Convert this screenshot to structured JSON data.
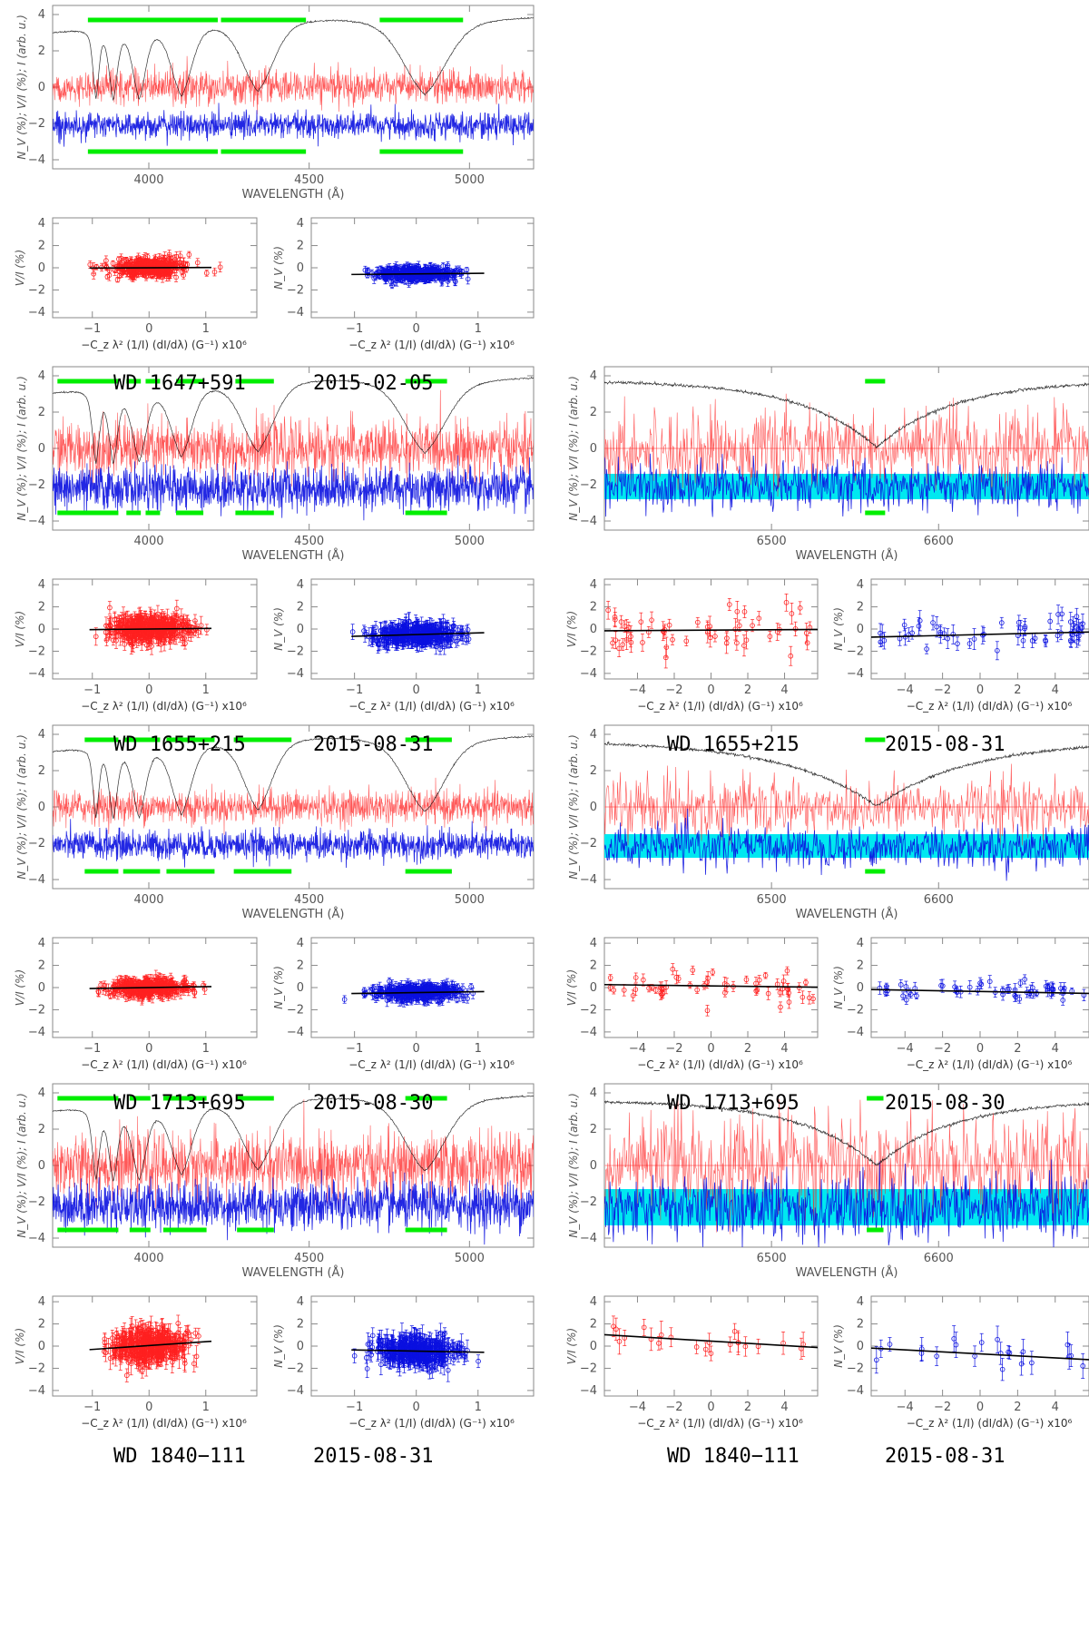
{
  "texts": {
    "spec_ylabel": "N_V (%); V/I (%); I (arb. u.)",
    "spec_xlabel": "WAVELENGTH (Å)",
    "corr_xlabel": "−C_z λ² (1/I) (dI/dλ) (G⁻¹) x10⁶",
    "corr_ylabel_v": "V/I (%)",
    "corr_ylabel_n": "N_V (%)"
  },
  "colors": {
    "stokes_v": "#ff2020",
    "null": "#0a10e0",
    "null_band": "#00e8f0",
    "intensity": "#000000",
    "mask": "#00ee00",
    "frame": "#8a8a8a",
    "fit": "#000000"
  },
  "blocks": [
    {
      "star": "WD 1647+591",
      "date": "2015-02-05",
      "blue_plot": {
        "xlim": [
          3700,
          5200
        ],
        "ylim": [
          -4.5,
          4.5
        ],
        "xticks": [
          4000,
          4500,
          5000
        ],
        "yticks": [
          -4,
          -2,
          0,
          2,
          4
        ],
        "intensity_continuum": 3.9,
        "balmer_lines": [
          {
            "center": 3835,
            "depth": 3.7,
            "width": 10
          },
          {
            "center": 3889,
            "depth": 3.8,
            "width": 14
          },
          {
            "center": 3970,
            "depth": 3.9,
            "width": 22
          },
          {
            "center": 4102,
            "depth": 4.0,
            "width": 35
          },
          {
            "center": 4340,
            "depth": 4.1,
            "width": 55
          },
          {
            "center": 4861,
            "depth": 4.3,
            "width": 75
          }
        ],
        "stokes_v_offset": 0.0,
        "stokes_v_noise": 0.45,
        "null_offset": -2.1,
        "null_noise": 0.35,
        "mask_intervals": [
          [
            3810,
            4215
          ],
          [
            4225,
            4490
          ],
          [
            4720,
            4980
          ]
        ],
        "has_band": false
      },
      "blue_corr": {
        "v_xlim": [
          -1.7,
          1.9
        ],
        "n_xlim": [
          -1.7,
          1.9
        ],
        "ylim": [
          -4.5,
          4.5
        ],
        "xticks": [
          -1,
          0,
          1
        ],
        "yticks": [
          -4,
          -2,
          0,
          2,
          4
        ],
        "v_fit": [
          0.0,
          0.02
        ],
        "n_fit": [
          -0.55,
          0.05
        ],
        "v_spread": 0.4,
        "n_spread": 0.3,
        "n_points": 350,
        "err": 0.35
      }
    },
    {
      "star": "WD 1655+215",
      "date": "2015-08-31",
      "blue_plot": {
        "xlim": [
          3700,
          5200
        ],
        "ylim": [
          -4.5,
          4.5
        ],
        "xticks": [
          4000,
          4500,
          5000
        ],
        "yticks": [
          -4,
          -2,
          0,
          2,
          4
        ],
        "intensity_continuum": 3.95,
        "balmer_lines": [
          {
            "center": 3835,
            "depth": 3.9,
            "width": 12
          },
          {
            "center": 3889,
            "depth": 3.9,
            "width": 15
          },
          {
            "center": 3970,
            "depth": 4.0,
            "width": 24
          },
          {
            "center": 4102,
            "depth": 4.0,
            "width": 36
          },
          {
            "center": 4340,
            "depth": 4.1,
            "width": 55
          },
          {
            "center": 4861,
            "depth": 4.2,
            "width": 72
          }
        ],
        "stokes_v_offset": 0.0,
        "stokes_v_noise": 0.75,
        "null_offset": -2.2,
        "null_noise": 0.6,
        "mask_intervals": [
          [
            3715,
            3905
          ],
          [
            3930,
            3975
          ],
          [
            3990,
            4035
          ],
          [
            4085,
            4170
          ],
          [
            4270,
            4390
          ],
          [
            4800,
            4930
          ]
        ],
        "has_band": false
      },
      "blue_corr": {
        "v_xlim": [
          -1.7,
          1.9
        ],
        "n_xlim": [
          -1.7,
          1.9
        ],
        "ylim": [
          -4.5,
          4.5
        ],
        "xticks": [
          -1,
          0,
          1
        ],
        "yticks": [
          -4,
          -2,
          0,
          2,
          4
        ],
        "v_fit": [
          0.0,
          0.05
        ],
        "n_fit": [
          -0.5,
          0.15
        ],
        "v_spread": 0.55,
        "n_spread": 0.45,
        "n_points": 380,
        "err": 0.6
      },
      "red_plot": {
        "xlim": [
          6400,
          6690
        ],
        "ylim": [
          -4.5,
          4.5
        ],
        "xticks": [
          6500,
          6600
        ],
        "yticks": [
          -4,
          -2,
          0,
          2,
          4
        ],
        "intensity_continuum": 3.75,
        "halpha": {
          "center": 6563,
          "depth": 3.7,
          "width": 45
        },
        "stokes_v_offset": 0.0,
        "stokes_v_noise": 1.0,
        "null_offset": -2.1,
        "null_noise": 0.65,
        "band": [
          -2.8,
          -1.4
        ],
        "mask_intervals": [
          [
            6556,
            6568
          ]
        ],
        "has_band": true
      },
      "red_corr": {
        "v_xlim": [
          -5.8,
          5.8
        ],
        "n_xlim": [
          -5.8,
          5.8
        ],
        "ylim": [
          -4.5,
          4.5
        ],
        "xticks": [
          -4,
          -2,
          0,
          2,
          4
        ],
        "yticks": [
          -4,
          -2,
          0,
          2,
          4
        ],
        "v_fit": [
          -0.1,
          0.01
        ],
        "n_fit": [
          -0.5,
          0.04
        ],
        "v_spread": 1.2,
        "n_spread": 0.8,
        "n_points": 55,
        "err": 0.7
      }
    },
    {
      "star": "WD 1713+695",
      "date": "2015-08-30",
      "blue_plot": {
        "xlim": [
          3700,
          5200
        ],
        "ylim": [
          -4.5,
          4.5
        ],
        "xticks": [
          4000,
          4500,
          5000
        ],
        "yticks": [
          -4,
          -2,
          0,
          2,
          4
        ],
        "intensity_continuum": 3.95,
        "balmer_lines": [
          {
            "center": 3835,
            "depth": 3.7,
            "width": 10
          },
          {
            "center": 3889,
            "depth": 3.8,
            "width": 14
          },
          {
            "center": 3970,
            "depth": 3.9,
            "width": 22
          },
          {
            "center": 4102,
            "depth": 4.0,
            "width": 34
          },
          {
            "center": 4340,
            "depth": 4.1,
            "width": 50
          },
          {
            "center": 4861,
            "depth": 4.2,
            "width": 70
          }
        ],
        "stokes_v_offset": 0.0,
        "stokes_v_noise": 0.45,
        "null_offset": -2.1,
        "null_noise": 0.4,
        "mask_intervals": [
          [
            3800,
            3905
          ],
          [
            3920,
            4035
          ],
          [
            4055,
            4205
          ],
          [
            4265,
            4445
          ],
          [
            4800,
            4945
          ]
        ],
        "has_band": false
      },
      "blue_corr": {
        "v_xlim": [
          -1.7,
          1.9
        ],
        "n_xlim": [
          -1.7,
          1.9
        ],
        "ylim": [
          -4.5,
          4.5
        ],
        "xticks": [
          -1,
          0,
          1
        ],
        "yticks": [
          -4,
          -2,
          0,
          2,
          4
        ],
        "v_fit": [
          0.0,
          0.08
        ],
        "n_fit": [
          -0.45,
          0.08
        ],
        "v_spread": 0.4,
        "n_spread": 0.35,
        "n_points": 350,
        "err": 0.4
      },
      "red_plot": {
        "xlim": [
          6400,
          6690
        ],
        "ylim": [
          -4.5,
          4.5
        ],
        "xticks": [
          6500,
          6600
        ],
        "yticks": [
          -4,
          -2,
          0,
          2,
          4
        ],
        "intensity_continuum": 3.65,
        "halpha": {
          "center": 6563,
          "depth": 3.6,
          "width": 55
        },
        "stokes_v_offset": 0.0,
        "stokes_v_noise": 0.8,
        "null_offset": -2.2,
        "null_noise": 0.55,
        "band": [
          -2.8,
          -1.5
        ],
        "mask_intervals": [
          [
            6556,
            6568
          ]
        ],
        "has_band": true
      },
      "red_corr": {
        "v_xlim": [
          -5.8,
          5.8
        ],
        "n_xlim": [
          -5.8,
          5.8
        ],
        "ylim": [
          -4.5,
          4.5
        ],
        "xticks": [
          -4,
          -2,
          0,
          2,
          4
        ],
        "yticks": [
          -4,
          -2,
          0,
          2,
          4
        ],
        "v_fit": [
          0.15,
          -0.02
        ],
        "n_fit": [
          -0.35,
          -0.03
        ],
        "v_spread": 0.8,
        "n_spread": 0.45,
        "n_points": 55,
        "err": 0.45
      }
    },
    {
      "star": "WD 1840−111",
      "date": "2015-08-31",
      "blue_plot": {
        "xlim": [
          3700,
          5200
        ],
        "ylim": [
          -4.5,
          4.5
        ],
        "xticks": [
          4000,
          4500,
          5000
        ],
        "yticks": [
          -4,
          -2,
          0,
          2,
          4
        ],
        "intensity_continuum": 3.9,
        "balmer_lines": [
          {
            "center": 3835,
            "depth": 3.8,
            "width": 12
          },
          {
            "center": 3889,
            "depth": 3.9,
            "width": 15
          },
          {
            "center": 3970,
            "depth": 4.0,
            "width": 24
          },
          {
            "center": 4102,
            "depth": 4.0,
            "width": 36
          },
          {
            "center": 4340,
            "depth": 4.1,
            "width": 55
          },
          {
            "center": 4861,
            "depth": 4.2,
            "width": 72
          }
        ],
        "stokes_v_offset": 0.0,
        "stokes_v_noise": 0.85,
        "null_offset": -2.2,
        "null_noise": 0.65,
        "mask_intervals": [
          [
            3715,
            3905
          ],
          [
            3940,
            4005
          ],
          [
            4045,
            4180
          ],
          [
            4275,
            4390
          ],
          [
            4800,
            4930
          ]
        ],
        "has_band": false
      },
      "blue_corr": {
        "v_xlim": [
          -1.7,
          1.9
        ],
        "n_xlim": [
          -1.7,
          1.9
        ],
        "ylim": [
          -4.5,
          4.5
        ],
        "xticks": [
          -1,
          0,
          1
        ],
        "yticks": [
          -4,
          -2,
          0,
          2,
          4
        ],
        "v_fit": [
          0.05,
          0.35
        ],
        "n_fit": [
          -0.45,
          -0.1
        ],
        "v_spread": 0.75,
        "n_spread": 0.6,
        "n_points": 380,
        "err": 0.75
      },
      "red_plot": {
        "xlim": [
          6400,
          6690
        ],
        "ylim": [
          -4.5,
          4.5
        ],
        "xticks": [
          6500,
          6600
        ],
        "yticks": [
          -4,
          -2,
          0,
          2,
          4
        ],
        "intensity_continuum": 3.6,
        "halpha": {
          "center": 6563,
          "depth": 3.6,
          "width": 45
        },
        "stokes_v_offset": 0.0,
        "stokes_v_noise": 1.3,
        "null_offset": -2.3,
        "null_noise": 0.9,
        "band": [
          -3.3,
          -1.3
        ],
        "mask_intervals": [
          [
            6557,
            6567
          ]
        ],
        "has_band": true
      },
      "red_corr": {
        "v_xlim": [
          -5.8,
          5.8
        ],
        "n_xlim": [
          -5.8,
          5.8
        ],
        "ylim": [
          -4.5,
          4.5
        ],
        "xticks": [
          -4,
          -2,
          0,
          2,
          4
        ],
        "yticks": [
          -4,
          -2,
          0,
          2,
          4
        ],
        "v_fit": [
          0.45,
          -0.1
        ],
        "n_fit": [
          -0.7,
          -0.09
        ],
        "v_spread": 0.55,
        "n_spread": 0.7,
        "n_points": 22,
        "err": 0.9
      }
    }
  ],
  "chart_data": {
    "type": "line",
    "title": "",
    "description_note": "Spectropolarimetric observations: I (black), V/I (red), N_V (blue) vs wavelength, plus V/I and N_V vs −C_z λ² (1/I)(dI/dλ) correlation diagrams",
    "series": [
      {
        "name": "I (arb. u.)",
        "color": "#000000"
      },
      {
        "name": "V/I (%)",
        "color": "#ff2020"
      },
      {
        "name": "N_V (%)",
        "color": "#0a10e0"
      }
    ],
    "xlabel": "WAVELENGTH (Å)",
    "ylabel": "N_V (%); V/I (%); I (arb. u.)"
  }
}
